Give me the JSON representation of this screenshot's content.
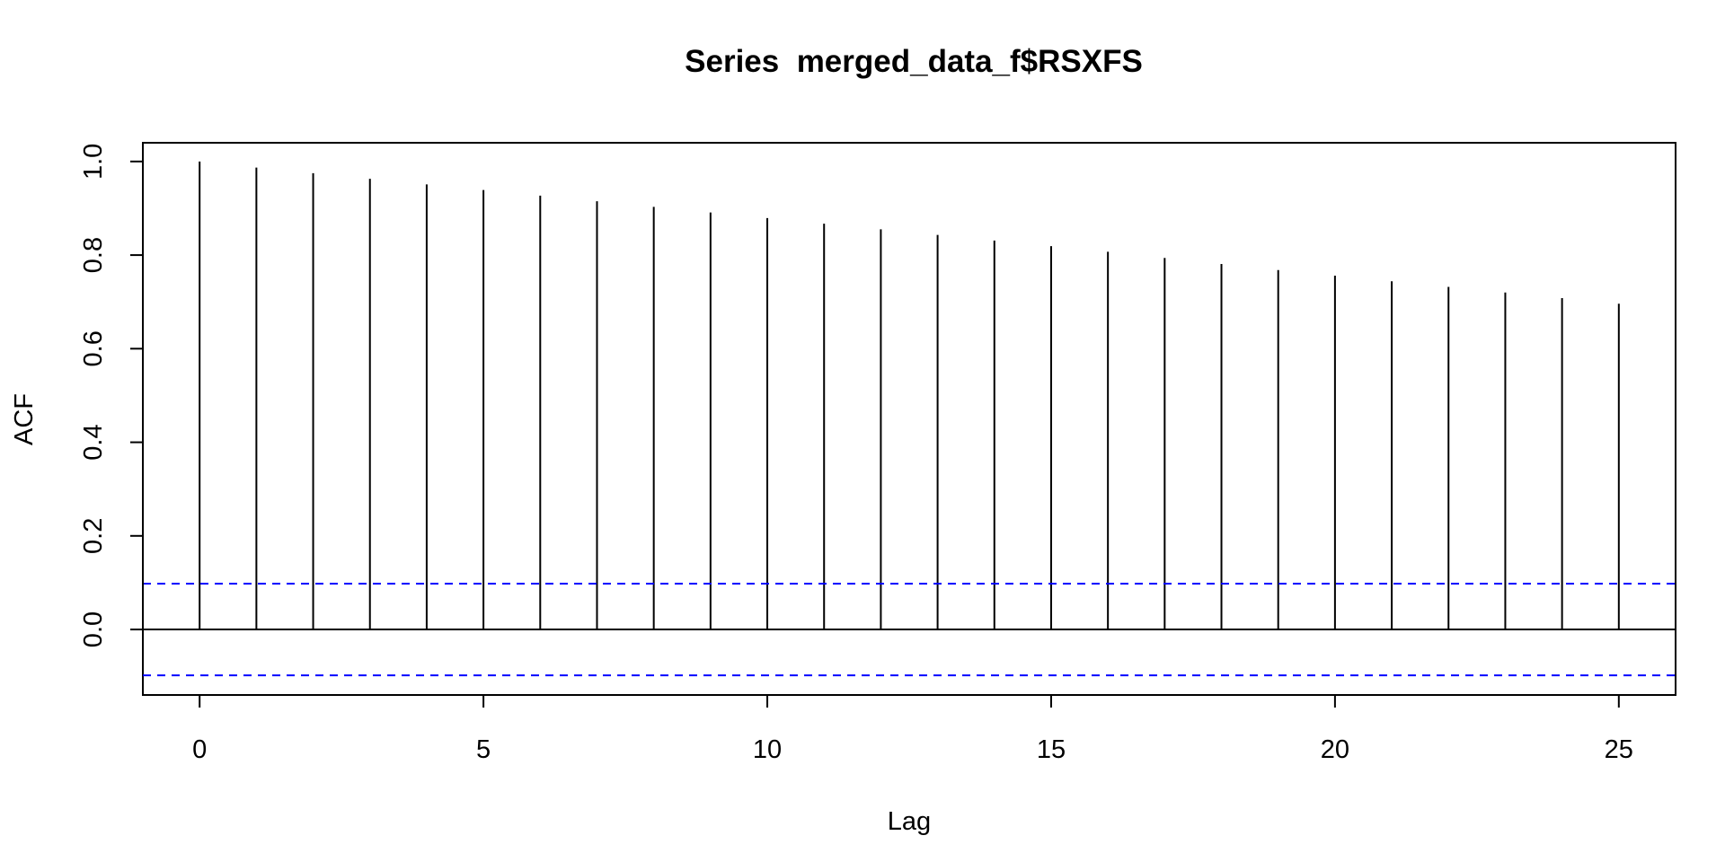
{
  "chart_data": {
    "type": "bar",
    "title": "Series  merged_data_f$RSXFS",
    "xlabel": "Lag",
    "ylabel": "ACF",
    "xlim": [
      -1,
      26
    ],
    "ylim": [
      -0.14,
      1.04
    ],
    "x_ticks": [
      "0",
      "5",
      "10",
      "15",
      "20",
      "25"
    ],
    "y_ticks": [
      "0.0",
      "0.2",
      "0.4",
      "0.6",
      "0.8",
      "1.0"
    ],
    "grid": false,
    "series": [
      {
        "lags": [
          0,
          1,
          2,
          3,
          4,
          5,
          6,
          7,
          8,
          9,
          10,
          11,
          12,
          13,
          14,
          15,
          16,
          17,
          18,
          19,
          20,
          21,
          22,
          23,
          24,
          25
        ],
        "values": [
          1.0,
          0.987,
          0.975,
          0.963,
          0.951,
          0.939,
          0.927,
          0.915,
          0.903,
          0.891,
          0.879,
          0.867,
          0.855,
          0.843,
          0.831,
          0.819,
          0.807,
          0.794,
          0.781,
          0.768,
          0.756,
          0.744,
          0.732,
          0.72,
          0.708,
          0.696
        ]
      }
    ],
    "confidence_bounds": [
      0.098,
      -0.098
    ],
    "colors": {
      "spikes": "#000000",
      "confidence_bounds": "#0000ff"
    }
  }
}
